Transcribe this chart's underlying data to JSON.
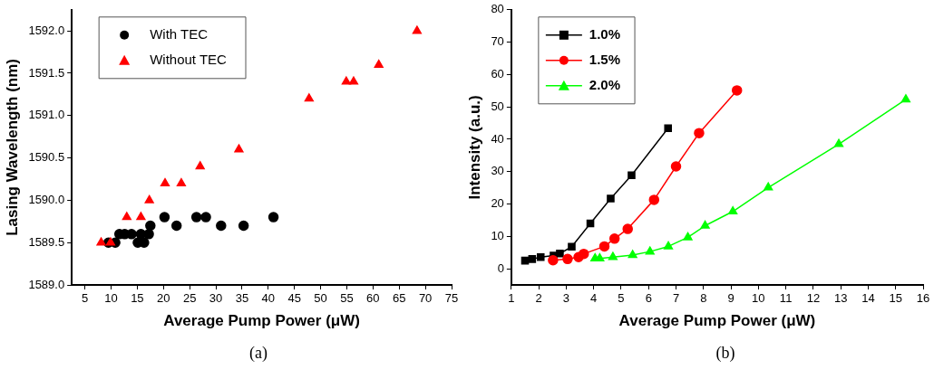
{
  "chart_data": [
    {
      "type": "scatter",
      "xlabel": "Average Pump Power (μW)",
      "ylabel": "Lasing Wavelength (nm)",
      "annotations": [
        "(a)"
      ],
      "xlim": [
        2.5,
        75
      ],
      "xticks": [
        5,
        10,
        15,
        20,
        25,
        30,
        35,
        40,
        45,
        50,
        55,
        60,
        65,
        70,
        75
      ],
      "ylim": [
        1589,
        1592.25
      ],
      "yticks": [
        {
          "value": 1589,
          "label": "1589.0"
        },
        {
          "value": 1589.5,
          "label": "1589.5"
        },
        {
          "value": 1590,
          "label": "1590.0"
        },
        {
          "value": 1590.5,
          "label": "1590.5"
        },
        {
          "value": 1591,
          "label": "1591.0"
        },
        {
          "value": 1591.5,
          "label": "1591.5"
        },
        {
          "value": 1592,
          "label": "1592.0"
        }
      ],
      "grid": false,
      "legend": "top left",
      "series": [
        {
          "name": "With TEC",
          "color": "#000000",
          "marker": "circle",
          "x": [
            9.5,
            10.8,
            11.6,
            12.6,
            13.9,
            15.1,
            15.7,
            16.3,
            17.2,
            17.5,
            20.2,
            22.5,
            26.3,
            28.1,
            31.0,
            35.3,
            41.0
          ],
          "values": [
            1589.5,
            1589.5,
            1589.6,
            1589.6,
            1589.6,
            1589.5,
            1589.6,
            1589.5,
            1589.6,
            1589.7,
            1589.8,
            1589.7,
            1589.8,
            1589.8,
            1589.7,
            1589.7,
            1589.8
          ]
        },
        {
          "name": "Without TEC",
          "color": "#ff0000",
          "marker": "triangle",
          "x": [
            8.1,
            9.9,
            13.0,
            15.7,
            17.3,
            20.3,
            23.4,
            27.0,
            34.4,
            47.8,
            54.9,
            56.3,
            61.1,
            68.4
          ],
          "values": [
            1589.5,
            1589.5,
            1589.8,
            1589.8,
            1590.0,
            1590.2,
            1590.2,
            1590.4,
            1590.6,
            1591.2,
            1591.4,
            1591.4,
            1591.6,
            1592.0
          ]
        }
      ]
    },
    {
      "type": "line",
      "xlabel": "Average Pump Power (μW)",
      "ylabel": "Intensity (a.u.)",
      "annotations": [
        "(b)"
      ],
      "xlim": [
        1,
        16
      ],
      "xticks": [
        1,
        2,
        3,
        4,
        5,
        6,
        7,
        8,
        9,
        10,
        11,
        12,
        13,
        14,
        15,
        16
      ],
      "ylim": [
        -5,
        80
      ],
      "yticks": [
        0,
        10,
        20,
        30,
        40,
        50,
        60,
        70,
        80
      ],
      "grid": false,
      "legend": "top left",
      "line_style": "solid",
      "series": [
        {
          "name": "1.0%",
          "color": "#000000",
          "marker": "square",
          "x": [
            1.5,
            1.76,
            2.07,
            2.54,
            2.77,
            3.2,
            3.88,
            4.62,
            5.38,
            6.71
          ],
          "values": [
            2.5,
            3.0,
            3.6,
            4.1,
            4.7,
            6.8,
            14.0,
            21.7,
            28.9,
            43.4
          ]
        },
        {
          "name": "1.5%",
          "color": "#ff0000",
          "marker": "circle",
          "x": [
            2.52,
            3.05,
            3.45,
            3.64,
            4.39,
            4.76,
            5.24,
            6.2,
            7.0,
            7.84,
            9.22
          ],
          "values": [
            2.6,
            3.0,
            3.6,
            4.6,
            6.9,
            9.3,
            12.3,
            21.3,
            31.6,
            41.9,
            55.1
          ]
        },
        {
          "name": "2.0%",
          "color": "#00ff00",
          "marker": "triangle",
          "x": [
            4.05,
            4.22,
            4.7,
            5.42,
            6.05,
            6.72,
            7.43,
            8.06,
            9.07,
            10.36,
            12.93,
            15.37
          ],
          "values": [
            3.2,
            3.2,
            3.6,
            4.2,
            5.3,
            6.9,
            9.7,
            13.3,
            17.7,
            25.1,
            38.5,
            52.3
          ]
        }
      ]
    }
  ]
}
